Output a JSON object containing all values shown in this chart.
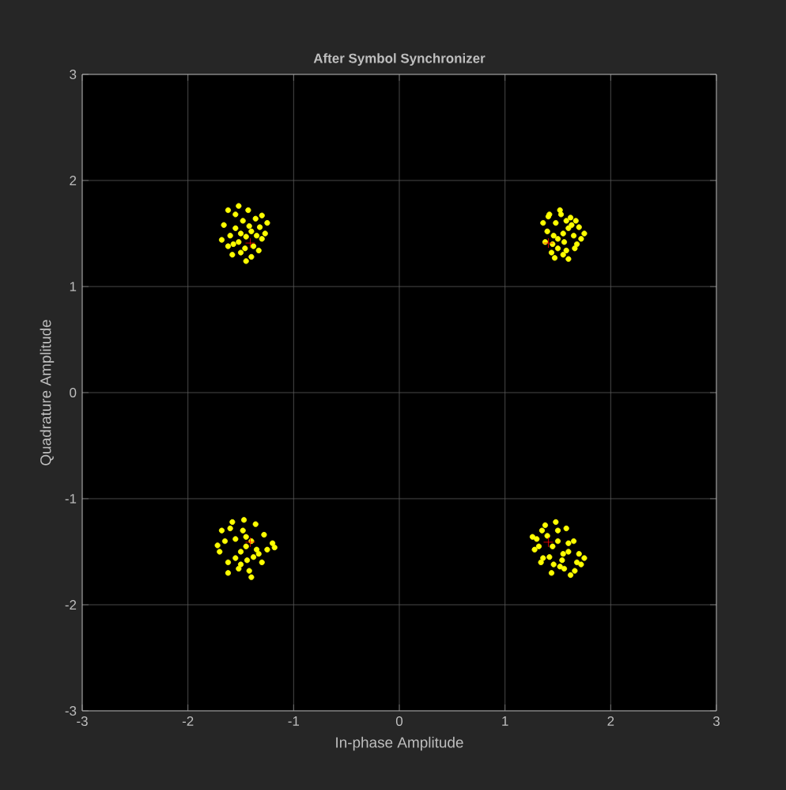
{
  "chart_data": {
    "type": "scatter",
    "title": "After Symbol Synchronizer",
    "xlabel": "In-phase Amplitude",
    "ylabel": "Quadrature Amplitude",
    "xlim": [
      -3,
      3
    ],
    "ylim": [
      -3,
      3
    ],
    "xticks": [
      -3,
      -2,
      -1,
      0,
      1,
      2,
      3
    ],
    "yticks": [
      -3,
      -2,
      -1,
      0,
      1,
      2,
      3
    ],
    "grid": true,
    "series": [
      {
        "color": "#ffff00",
        "marker": "circle",
        "x": [
          -1.45,
          -1.4,
          -1.52,
          -1.38,
          -1.55,
          -1.48,
          -1.36,
          -1.6,
          -1.62,
          -1.5,
          -1.4,
          -1.3,
          -1.32,
          -1.43,
          -1.55,
          -1.66,
          -1.68,
          -1.58,
          -1.45,
          -1.33,
          -1.27,
          -1.3,
          -1.25,
          -1.52,
          -1.62,
          -1.42,
          -1.5,
          -1.35,
          -1.57,
          -1.46,
          1.55,
          1.5,
          1.6,
          1.45,
          1.65,
          1.58,
          1.48,
          1.4,
          1.38,
          1.44,
          1.55,
          1.66,
          1.72,
          1.7,
          1.62,
          1.52,
          1.42,
          1.36,
          1.47,
          1.6,
          1.68,
          1.75,
          1.5,
          1.56,
          1.63,
          1.41,
          1.53,
          1.46,
          1.58,
          1.67,
          -1.45,
          -1.4,
          -1.5,
          -1.55,
          -1.35,
          -1.48,
          -1.38,
          -1.6,
          -1.65,
          -1.7,
          -1.62,
          -1.52,
          -1.42,
          -1.3,
          -1.25,
          -1.2,
          -1.28,
          -1.36,
          -1.47,
          -1.58,
          -1.68,
          -1.72,
          -1.44,
          -1.33,
          -1.55,
          -1.4,
          -1.5,
          -1.62,
          -1.18,
          -1.45,
          1.45,
          1.5,
          1.4,
          1.55,
          1.6,
          1.35,
          1.3,
          1.28,
          1.38,
          1.48,
          1.58,
          1.65,
          1.7,
          1.72,
          1.66,
          1.56,
          1.46,
          1.36,
          1.32,
          1.42,
          1.52,
          1.62,
          1.68,
          1.75,
          1.5,
          1.44,
          1.34,
          1.26,
          1.6,
          1.54
        ],
        "values": [
          1.47,
          1.52,
          1.42,
          1.38,
          1.55,
          1.62,
          1.64,
          1.48,
          1.38,
          1.32,
          1.28,
          1.45,
          1.56,
          1.72,
          1.68,
          1.58,
          1.44,
          1.3,
          1.24,
          1.34,
          1.5,
          1.67,
          1.6,
          1.76,
          1.72,
          1.57,
          1.5,
          1.48,
          1.4,
          1.36,
          1.5,
          1.45,
          1.55,
          1.4,
          1.48,
          1.62,
          1.6,
          1.52,
          1.42,
          1.32,
          1.3,
          1.36,
          1.45,
          1.56,
          1.65,
          1.72,
          1.68,
          1.6,
          1.27,
          1.26,
          1.4,
          1.5,
          1.36,
          1.42,
          1.58,
          1.66,
          1.68,
          1.48,
          1.34,
          1.62,
          -1.45,
          -1.4,
          -1.5,
          -1.38,
          -1.48,
          -1.3,
          -1.55,
          -1.28,
          -1.4,
          -1.5,
          -1.6,
          -1.66,
          -1.68,
          -1.6,
          -1.48,
          -1.42,
          -1.34,
          -1.24,
          -1.2,
          -1.22,
          -1.3,
          -1.44,
          -1.58,
          -1.52,
          -1.56,
          -1.74,
          -1.62,
          -1.7,
          -1.46,
          -1.36,
          -1.45,
          -1.4,
          -1.35,
          -1.52,
          -1.5,
          -1.3,
          -1.38,
          -1.48,
          -1.25,
          -1.22,
          -1.28,
          -1.4,
          -1.52,
          -1.62,
          -1.68,
          -1.66,
          -1.62,
          -1.56,
          -1.45,
          -1.55,
          -1.64,
          -1.72,
          -1.6,
          -1.56,
          -1.3,
          -1.7,
          -1.6,
          -1.36,
          -1.42,
          -1.58
        ]
      },
      {
        "color": "#ff0000",
        "marker": "cross",
        "x": [
          -1.41,
          1.41,
          -1.41,
          1.41
        ],
        "values": [
          1.41,
          1.41,
          -1.41,
          -1.41
        ]
      }
    ]
  }
}
